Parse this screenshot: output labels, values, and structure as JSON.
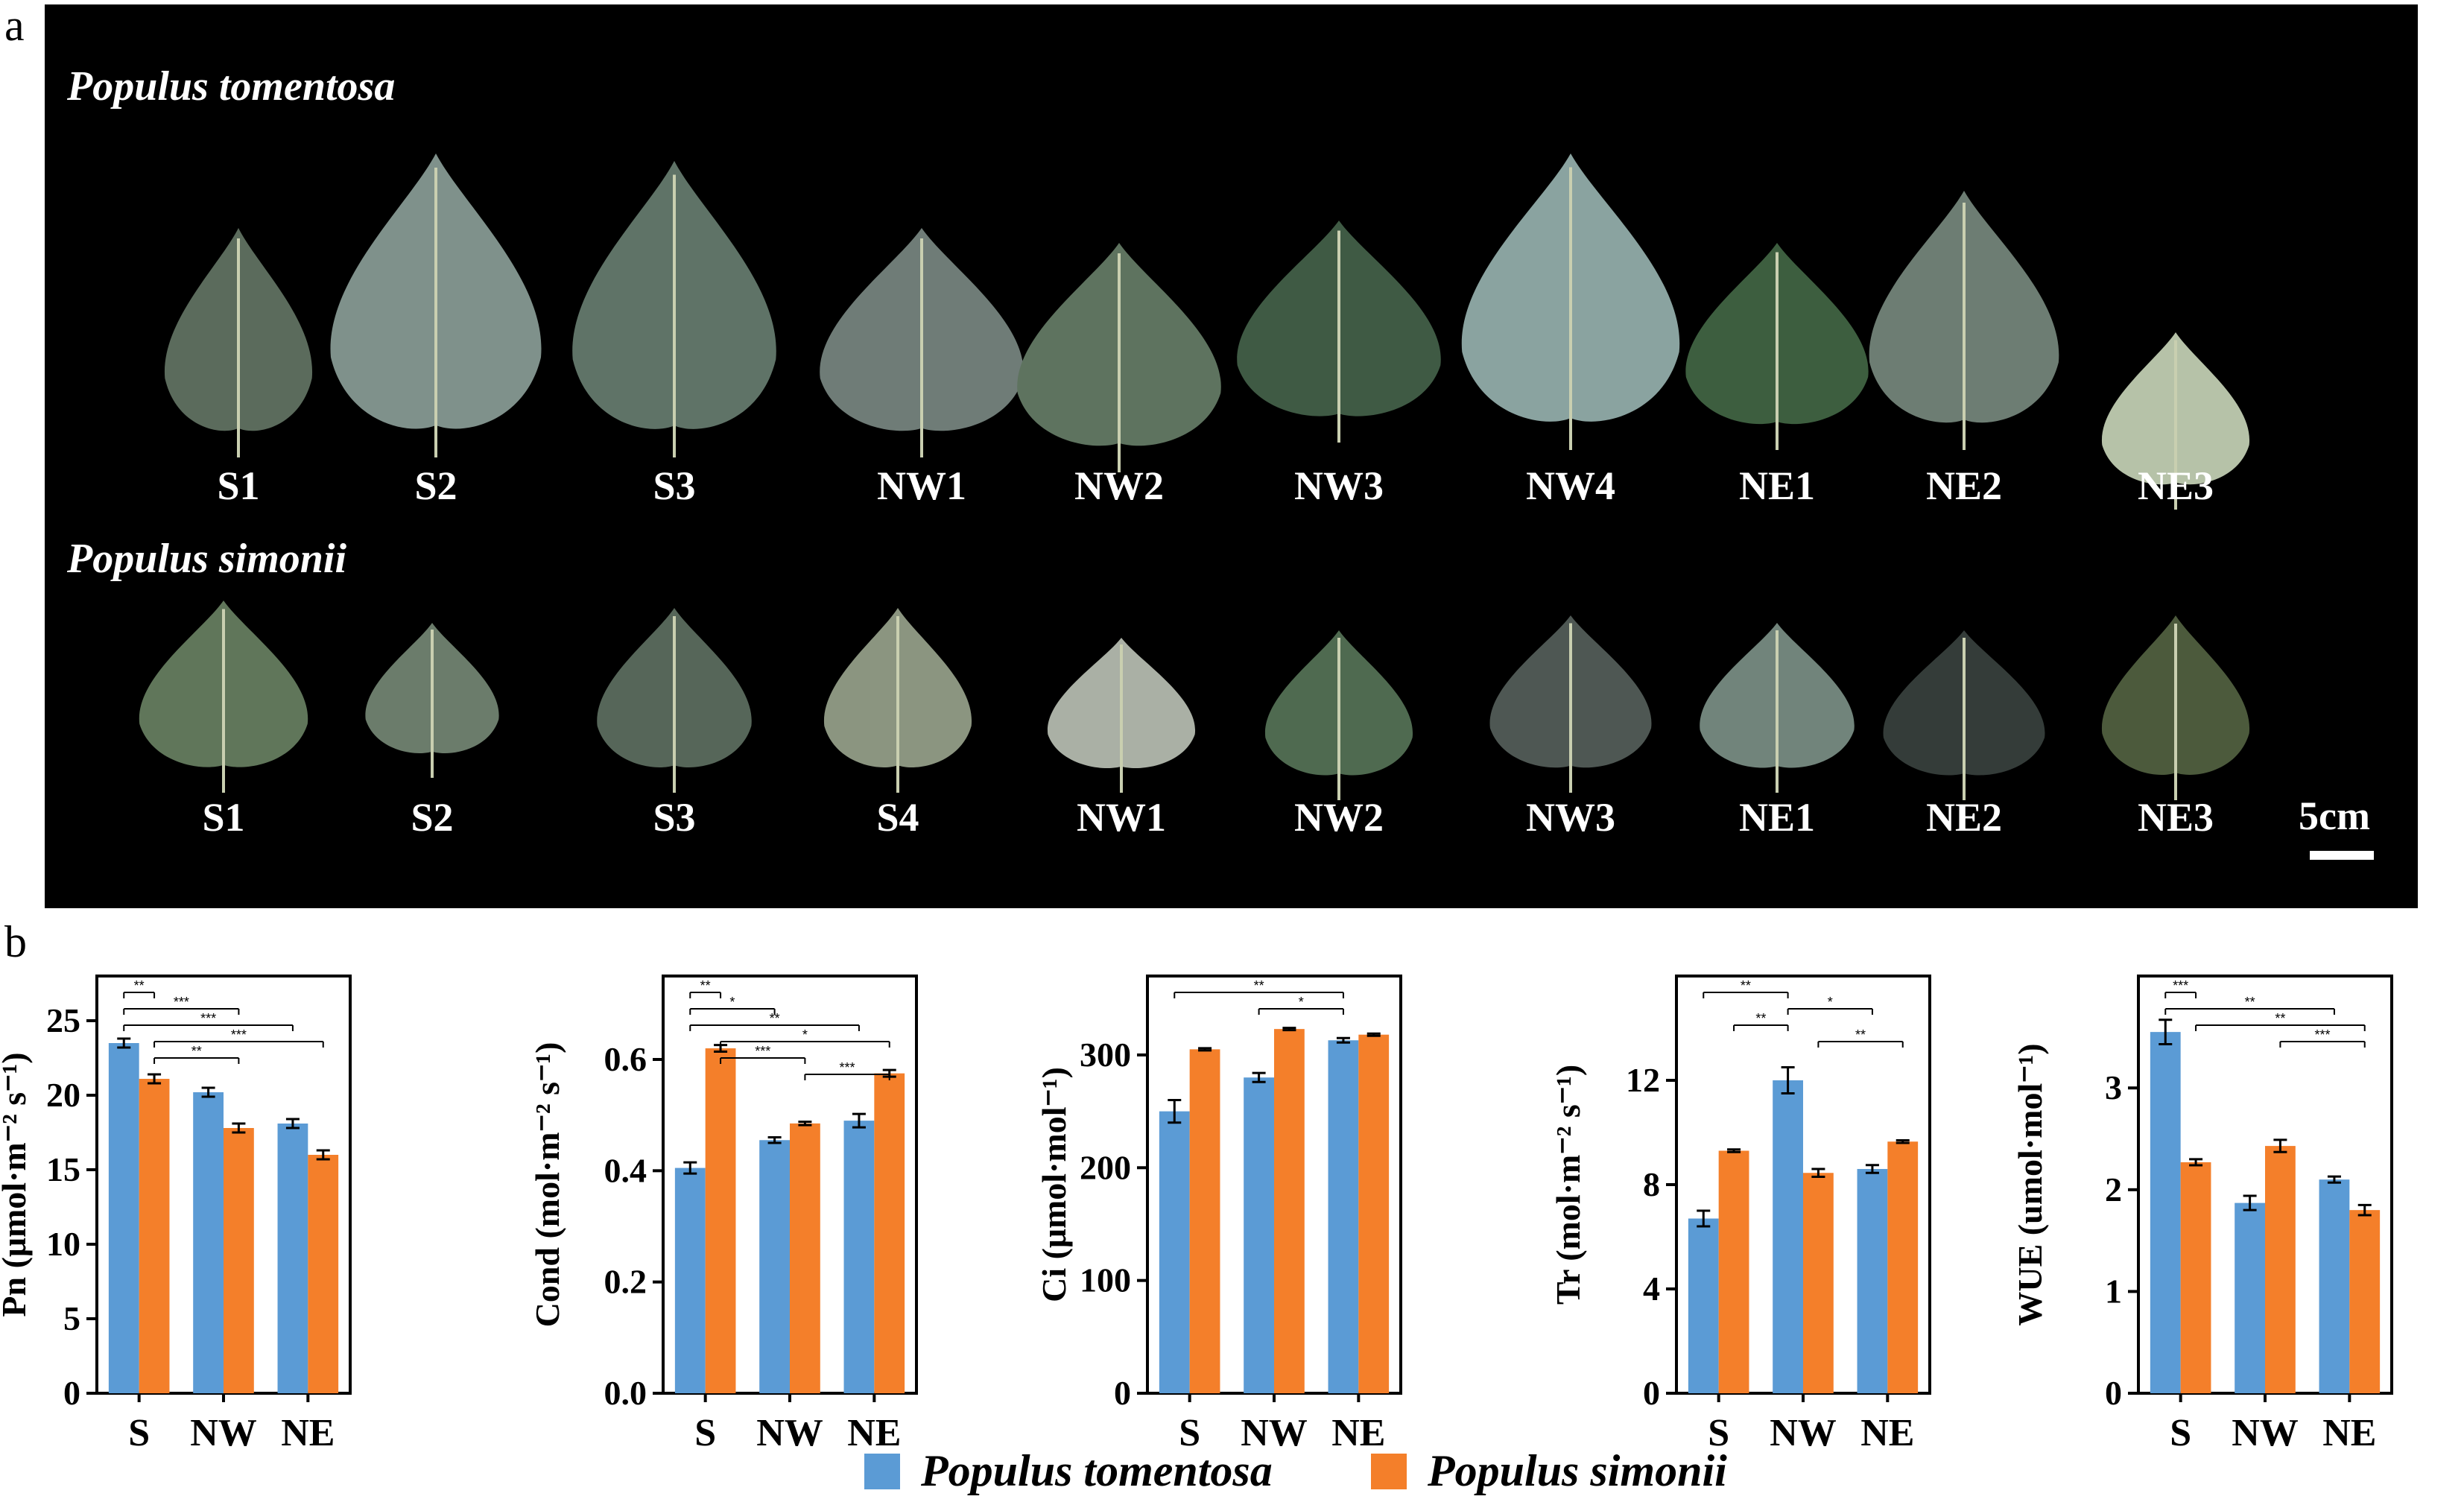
{
  "panel_a": {
    "letter": "a",
    "rows": [
      {
        "title": "Populus tomentosa",
        "leaves": [
          {
            "label": "S1",
            "color": "#5b6b5c"
          },
          {
            "label": "S2",
            "color": "#7f918b"
          },
          {
            "label": "S3",
            "color": "#5f7367"
          },
          {
            "label": "NW1",
            "color": "#6f7c77"
          },
          {
            "label": "NW2",
            "color": "#5e735f"
          },
          {
            "label": "NW3",
            "color": "#3f5a44"
          },
          {
            "label": "NW4",
            "color": "#8aa3a0"
          },
          {
            "label": "NE1",
            "color": "#3d5e3f"
          },
          {
            "label": "NE2",
            "color": "#6d7d73"
          },
          {
            "label": "NE3",
            "color": "#b6c2a8"
          }
        ]
      },
      {
        "title": "Populus simonii",
        "leaves": [
          {
            "label": "S1",
            "color": "#60765a"
          },
          {
            "label": "S2",
            "color": "#6b7c6b"
          },
          {
            "label": "S3",
            "color": "#566659"
          },
          {
            "label": "S4",
            "color": "#8b9580"
          },
          {
            "label": "NW1",
            "color": "#aab0a5"
          },
          {
            "label": "NW2",
            "color": "#4f6a50"
          },
          {
            "label": "NW3",
            "color": "#4e5753"
          },
          {
            "label": "NE1",
            "color": "#71847b"
          },
          {
            "label": "NE2",
            "color": "#343c39"
          },
          {
            "label": "NE3",
            "color": "#4c5a3c"
          }
        ]
      }
    ],
    "scale_label": "5cm"
  },
  "panel_b": {
    "letter": "b",
    "colors": {
      "tomentosa": "#5b9bd5",
      "simonii": "#f47f2a"
    }
  },
  "legend": [
    {
      "label": "Populus tomentosa",
      "color": "#5b9bd5"
    },
    {
      "label": "Populus simonii",
      "color": "#f47f2a"
    }
  ],
  "chart_data": [
    {
      "type": "bar",
      "ylabel": "Pn (μmol·m⁻² s⁻¹)",
      "categories": [
        "S",
        "NW",
        "NE"
      ],
      "ylim": [
        0,
        28
      ],
      "yticks": [
        0,
        5,
        10,
        15,
        20,
        25
      ],
      "series": [
        {
          "name": "Populus tomentosa",
          "values": [
            23.5,
            20.2,
            18.1
          ],
          "errors": [
            0.3,
            0.3,
            0.3
          ]
        },
        {
          "name": "Populus simonii",
          "values": [
            21.1,
            17.8,
            16.0
          ],
          "errors": [
            0.3,
            0.3,
            0.3
          ]
        }
      ],
      "significance": [
        {
          "from": 0,
          "to": 1,
          "label": "**"
        },
        {
          "from": 0,
          "to": 3,
          "label": "***"
        },
        {
          "from": 0,
          "to": 4,
          "label": "***"
        },
        {
          "from": 1,
          "to": 5,
          "label": "***"
        },
        {
          "from": 1,
          "to": 3,
          "label": "**"
        }
      ]
    },
    {
      "type": "bar",
      "ylabel": "Cond (mol·m⁻² s⁻¹)",
      "categories": [
        "S",
        "NW",
        "NE"
      ],
      "ylim": [
        0,
        0.75
      ],
      "yticks": [
        "0.0",
        "0.2",
        "0.4",
        "0.6"
      ],
      "series": [
        {
          "name": "Populus tomentosa",
          "values": [
            0.405,
            0.455,
            0.49
          ],
          "errors": [
            0.01,
            0.005,
            0.012
          ]
        },
        {
          "name": "Populus simonii",
          "values": [
            0.62,
            0.485,
            0.575
          ],
          "errors": [
            0.006,
            0.003,
            0.006
          ]
        }
      ],
      "significance": [
        {
          "from": 0,
          "to": 1,
          "label": "**"
        },
        {
          "from": 0,
          "to": 2,
          "label": "*"
        },
        {
          "from": 0,
          "to": 4,
          "label": "**"
        },
        {
          "from": 1,
          "to": 5,
          "label": "*"
        },
        {
          "from": 1,
          "to": 3,
          "label": "***"
        },
        {
          "from": 3,
          "to": 5,
          "label": "***"
        }
      ]
    },
    {
      "type": "bar",
      "ylabel": "Ci (μmol·mol⁻¹)",
      "categories": [
        "S",
        "NW",
        "NE"
      ],
      "ylim": [
        0,
        370
      ],
      "yticks": [
        0,
        100,
        200,
        300
      ],
      "series": [
        {
          "name": "Populus tomentosa",
          "values": [
            250,
            280,
            313
          ],
          "errors": [
            10,
            4,
            2
          ]
        },
        {
          "name": "Populus simonii",
          "values": [
            305,
            323,
            318
          ],
          "errors": [
            1,
            1,
            1
          ]
        }
      ],
      "significance": [
        {
          "from": 0,
          "to": 4,
          "label": "**"
        },
        {
          "from": 2,
          "to": 4,
          "label": "*"
        }
      ]
    },
    {
      "type": "bar",
      "ylabel": "Tr (mol·m⁻² s⁻¹)",
      "categories": [
        "S",
        "NW",
        "NE"
      ],
      "ylim": [
        0,
        16
      ],
      "yticks": [
        0,
        4,
        8,
        12
      ],
      "series": [
        {
          "name": "Populus tomentosa",
          "values": [
            6.7,
            12.0,
            8.6
          ],
          "errors": [
            0.3,
            0.5,
            0.15
          ]
        },
        {
          "name": "Populus simonii",
          "values": [
            9.3,
            8.45,
            9.65
          ],
          "errors": [
            0.05,
            0.15,
            0.05
          ]
        }
      ],
      "significance": [
        {
          "from": 0,
          "to": 2,
          "label": "**"
        },
        {
          "from": 2,
          "to": 4,
          "label": "*"
        },
        {
          "from": 1,
          "to": 2,
          "label": "**"
        },
        {
          "from": 3,
          "to": 5,
          "label": "**"
        }
      ]
    },
    {
      "type": "bar",
      "ylabel": "WUE (umol·mol⁻¹)",
      "categories": [
        "S",
        "NW",
        "NE"
      ],
      "ylim": [
        0,
        4.1
      ],
      "yticks": [
        0,
        1,
        2,
        3
      ],
      "series": [
        {
          "name": "Populus tomentosa",
          "values": [
            3.55,
            1.87,
            2.1
          ],
          "errors": [
            0.12,
            0.07,
            0.03
          ]
        },
        {
          "name": "Populus simonii",
          "values": [
            2.27,
            2.43,
            1.8
          ],
          "errors": [
            0.03,
            0.06,
            0.05
          ]
        }
      ],
      "significance": [
        {
          "from": 0,
          "to": 1,
          "label": "***"
        },
        {
          "from": 0,
          "to": 4,
          "label": "**"
        },
        {
          "from": 1,
          "to": 5,
          "label": "**"
        },
        {
          "from": 3,
          "to": 5,
          "label": "***"
        }
      ]
    }
  ]
}
